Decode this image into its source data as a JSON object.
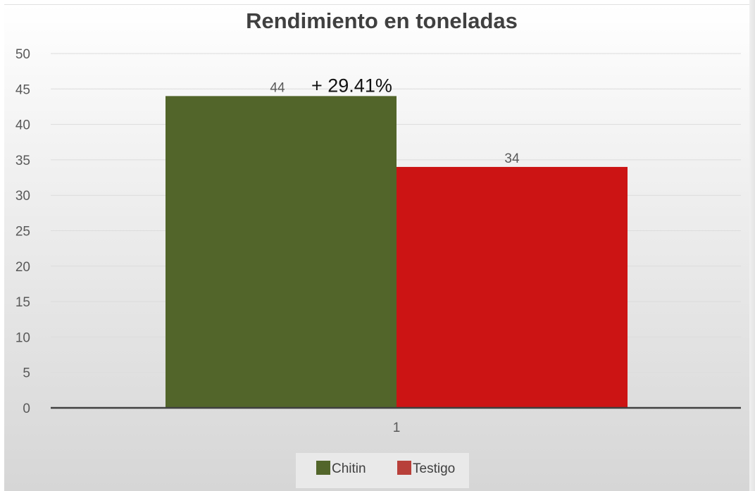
{
  "chart_data": {
    "type": "bar",
    "title": "Rendimiento en toneladas",
    "categories": [
      "1"
    ],
    "series": [
      {
        "name": "Chitin",
        "values": [
          44
        ],
        "color": "#52652a",
        "legend_color": "#52652a"
      },
      {
        "name": "Testigo",
        "values": [
          34
        ],
        "color": "#cc1414",
        "legend_color": "#b8403a"
      }
    ],
    "data_labels": [
      "44",
      "34"
    ],
    "annotation": "+ 29.41%",
    "ylim": [
      0,
      50
    ],
    "yticks": [
      0,
      5,
      10,
      15,
      20,
      25,
      30,
      35,
      40,
      45,
      50
    ],
    "grid": true,
    "legend_position": "bottom"
  }
}
